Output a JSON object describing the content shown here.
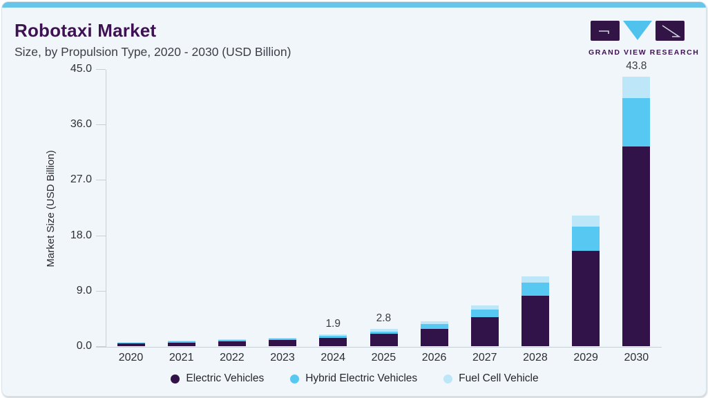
{
  "header": {
    "title": "Robotaxi Market",
    "subtitle": "Size, by Propulsion Type, 2020 - 2030 (USD Billion)",
    "logo_text": "GRAND VIEW RESEARCH"
  },
  "colors": {
    "accent_bar": "#67c5ea",
    "card_background": "#f1f6fa",
    "title_purple": "#3d1152",
    "electric_vehicles": "#31134a",
    "hybrid_electric_vehicles": "#56c8f1",
    "fuel_cell_vehicle": "#bde7f8"
  },
  "chart_data": {
    "type": "bar",
    "stacked": true,
    "title": "Robotaxi Market Size, by Propulsion Type, 2020 - 2030 (USD Billion)",
    "xlabel": "",
    "ylabel": "Market Size (USD Billion)",
    "ylim": [
      0,
      45
    ],
    "yticks": [
      "0.0",
      "9.0",
      "18.0",
      "27.0",
      "36.0",
      "45.0"
    ],
    "grid": false,
    "legend_position": "bottom",
    "categories": [
      "2020",
      "2021",
      "2022",
      "2023",
      "2024",
      "2025",
      "2026",
      "2027",
      "2028",
      "2029",
      "2030"
    ],
    "series": [
      {
        "name": "Electric Vehicles",
        "color": "#31134a",
        "values": [
          0.45,
          0.6,
          0.76,
          0.97,
          1.4,
          2.0,
          2.8,
          4.7,
          8.2,
          15.5,
          32.4
        ]
      },
      {
        "name": "Hybrid Electric Vehicles",
        "color": "#56c8f1",
        "values": [
          0.13,
          0.16,
          0.2,
          0.24,
          0.27,
          0.4,
          0.75,
          1.3,
          2.1,
          3.9,
          7.9
        ]
      },
      {
        "name": "Fuel Cell Vehicle",
        "color": "#bde7f8",
        "values": [
          0.1,
          0.11,
          0.12,
          0.14,
          0.23,
          0.4,
          0.45,
          0.6,
          1.0,
          1.8,
          3.5
        ]
      }
    ],
    "totals": [
      0.68,
      0.87,
      1.08,
      1.35,
      1.9,
      2.8,
      4.0,
      6.6,
      11.3,
      21.2,
      43.8
    ],
    "value_labels": {
      "2024": "1.9",
      "2025": "2.8",
      "2030": "43.8"
    }
  }
}
